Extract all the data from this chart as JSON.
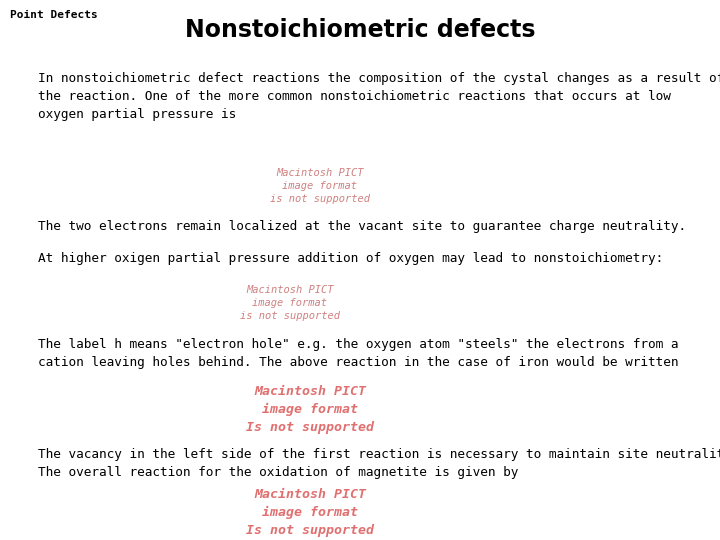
{
  "background_color": "#ffffff",
  "header_label": "Point Defects",
  "title": "Nonstoichiometric defects",
  "para1": "In nonstoichiometric defect reactions the composition of the cystal changes as a result of\nthe reaction. One of the more common nonstoichiometric reactions that occurs at low\noxygen partial pressure is",
  "pict1_lines": "Macintosh PICT\nimage format\nis not supported",
  "para2": "The two electrons remain localized at the vacant site to guarantee charge neutrality.",
  "para3": "At higher oxigen partial pressure addition of oxygen may lead to nonstoichiometry:",
  "pict2_lines": "Macintosh PICT\nimage format\nis not supported",
  "para4": "The label h means \"electron hole\" e.g. the oxygen atom \"steels\" the electrons from a\ncation leaving holes behind. The above reaction in the case of iron would be written",
  "pict3_lines": "Macintosh PICT\nimage format\nIs not supported",
  "para5": "The vacancy in the left side of the first reaction is necessary to maintain site neutrality.\nThe overall reaction for the oxidation of magnetite is given by",
  "pict4_lines": "Macintosh PICT\nimage format\nIs not supported",
  "pict_color_small": "#d08080",
  "pict_color_large": "#e07070",
  "body_color": "#000000"
}
